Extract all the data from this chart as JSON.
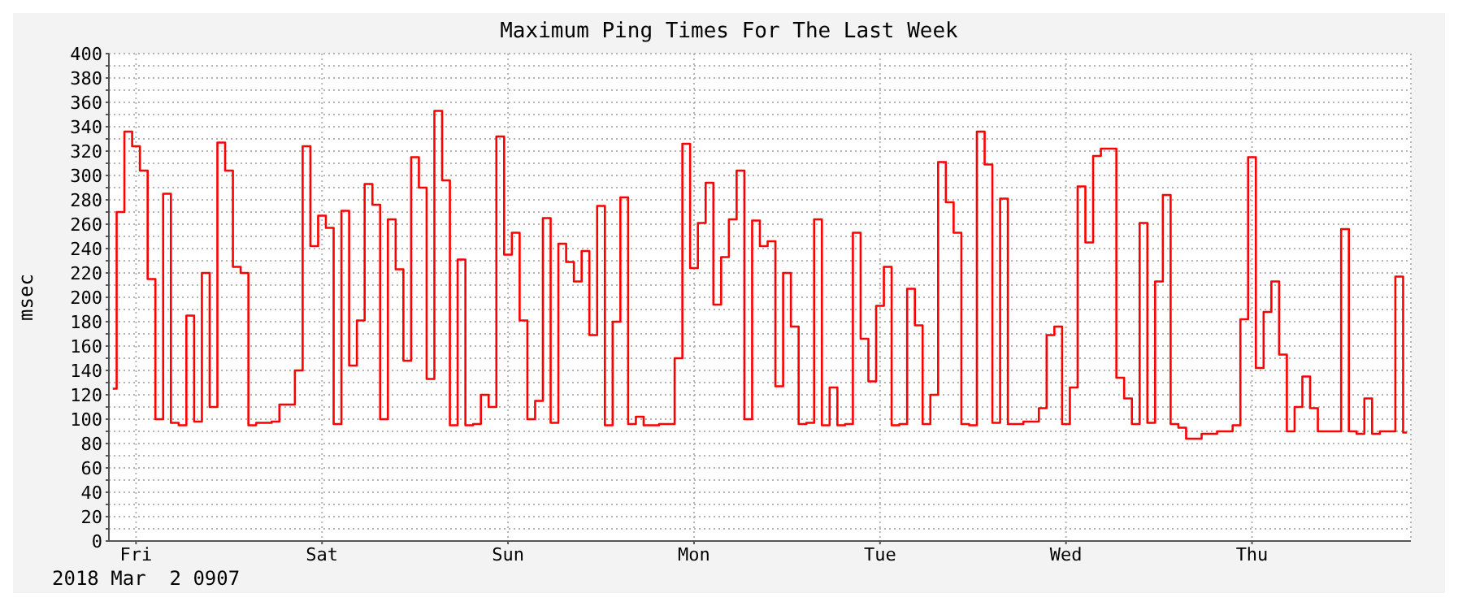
{
  "chart_data": {
    "type": "step",
    "title": "Maximum Ping Times For The Last Week",
    "ylabel": "msec",
    "annotations": [
      "2018 Mar  2 0907"
    ],
    "color": "#ff0000",
    "grid": true,
    "categories": [
      null,
      null,
      null,
      "Fri",
      null,
      null,
      null,
      null,
      null,
      null,
      null,
      null,
      null,
      null,
      null,
      null,
      null,
      null,
      null,
      null,
      null,
      null,
      null,
      null,
      null,
      null,
      null,
      "Sat",
      null,
      null,
      null,
      null,
      null,
      null,
      null,
      null,
      null,
      null,
      null,
      null,
      null,
      null,
      null,
      null,
      null,
      null,
      null,
      null,
      null,
      null,
      null,
      "Sun",
      null,
      null,
      null,
      null,
      null,
      null,
      null,
      null,
      null,
      null,
      null,
      null,
      null,
      null,
      null,
      null,
      null,
      null,
      null,
      null,
      null,
      null,
      null,
      "Mon",
      null,
      null,
      null,
      null,
      null,
      null,
      null,
      null,
      null,
      null,
      null,
      null,
      null,
      null,
      null,
      null,
      null,
      null,
      null,
      null,
      null,
      null,
      null,
      "Tue",
      null,
      null,
      null,
      null,
      null,
      null,
      null,
      null,
      null,
      null,
      null,
      null,
      null,
      null,
      null,
      null,
      null,
      null,
      null,
      null,
      null,
      null,
      null,
      "Wed",
      null,
      null,
      null,
      null,
      null,
      null,
      null,
      null,
      null,
      null,
      null,
      null,
      null,
      null,
      null,
      null,
      null,
      null,
      null,
      null,
      null,
      null,
      null,
      "Thu",
      null,
      null,
      null,
      null,
      null,
      null,
      null,
      null,
      null,
      null,
      null,
      null,
      null,
      null,
      null,
      null,
      null,
      null,
      null,
      null
    ],
    "ylim": [
      0,
      400
    ],
    "yticks": [
      0,
      {
        "value": 10,
        "label": null
      },
      20,
      {
        "value": 30,
        "label": null
      },
      40,
      {
        "value": 50,
        "label": null
      },
      60,
      {
        "value": 70,
        "label": null
      },
      80,
      {
        "value": 90,
        "label": null
      },
      100,
      {
        "value": 110,
        "label": null
      },
      120,
      {
        "value": 130,
        "label": null
      },
      140,
      {
        "value": 150,
        "label": null
      },
      160,
      {
        "value": 170,
        "label": null
      },
      180,
      {
        "value": 190,
        "label": null
      },
      200,
      {
        "value": 210,
        "label": null
      },
      220,
      {
        "value": 230,
        "label": null
      },
      240,
      {
        "value": 250,
        "label": null
      },
      260,
      {
        "value": 270,
        "label": null
      },
      280,
      {
        "value": 290,
        "label": null
      },
      300,
      {
        "value": 310,
        "label": null
      },
      320,
      {
        "value": 330,
        "label": null
      },
      340,
      {
        "value": 350,
        "label": null
      },
      360,
      {
        "value": 370,
        "label": null
      },
      380,
      {
        "value": 390,
        "label": null
      },
      400
    ],
    "values": [
      125,
      270,
      336,
      324,
      304,
      215,
      100,
      285,
      97,
      95,
      185,
      98,
      220,
      110,
      327,
      304,
      225,
      220,
      95,
      97,
      97,
      98,
      112,
      112,
      140,
      324,
      242,
      267,
      257,
      96,
      271,
      144,
      181,
      293,
      276,
      100,
      264,
      223,
      148,
      315,
      290,
      133,
      353,
      296,
      95,
      231,
      95,
      96,
      120,
      110,
      332,
      235,
      253,
      181,
      100,
      115,
      265,
      97,
      244,
      229,
      213,
      238,
      169,
      275,
      95,
      180,
      282,
      96,
      102,
      95,
      95,
      96,
      96,
      150,
      326,
      224,
      261,
      294,
      194,
      233,
      264,
      304,
      100,
      263,
      242,
      246,
      127,
      220,
      176,
      96,
      97,
      264,
      95,
      126,
      95,
      96,
      253,
      166,
      131,
      193,
      225,
      95,
      96,
      207,
      177,
      96,
      120,
      311,
      278,
      253,
      96,
      95,
      336,
      309,
      97,
      281,
      96,
      96,
      98,
      98,
      109,
      169,
      176,
      96,
      126,
      291,
      245,
      316,
      322,
      322,
      134,
      117,
      96,
      261,
      97,
      213,
      284,
      96,
      93,
      84,
      84,
      88,
      88,
      90,
      90,
      95,
      182,
      315,
      142,
      188,
      213,
      153,
      90,
      110,
      135,
      109,
      90,
      90,
      90,
      256,
      90,
      88,
      117,
      88,
      90,
      90,
      217,
      89
    ]
  }
}
